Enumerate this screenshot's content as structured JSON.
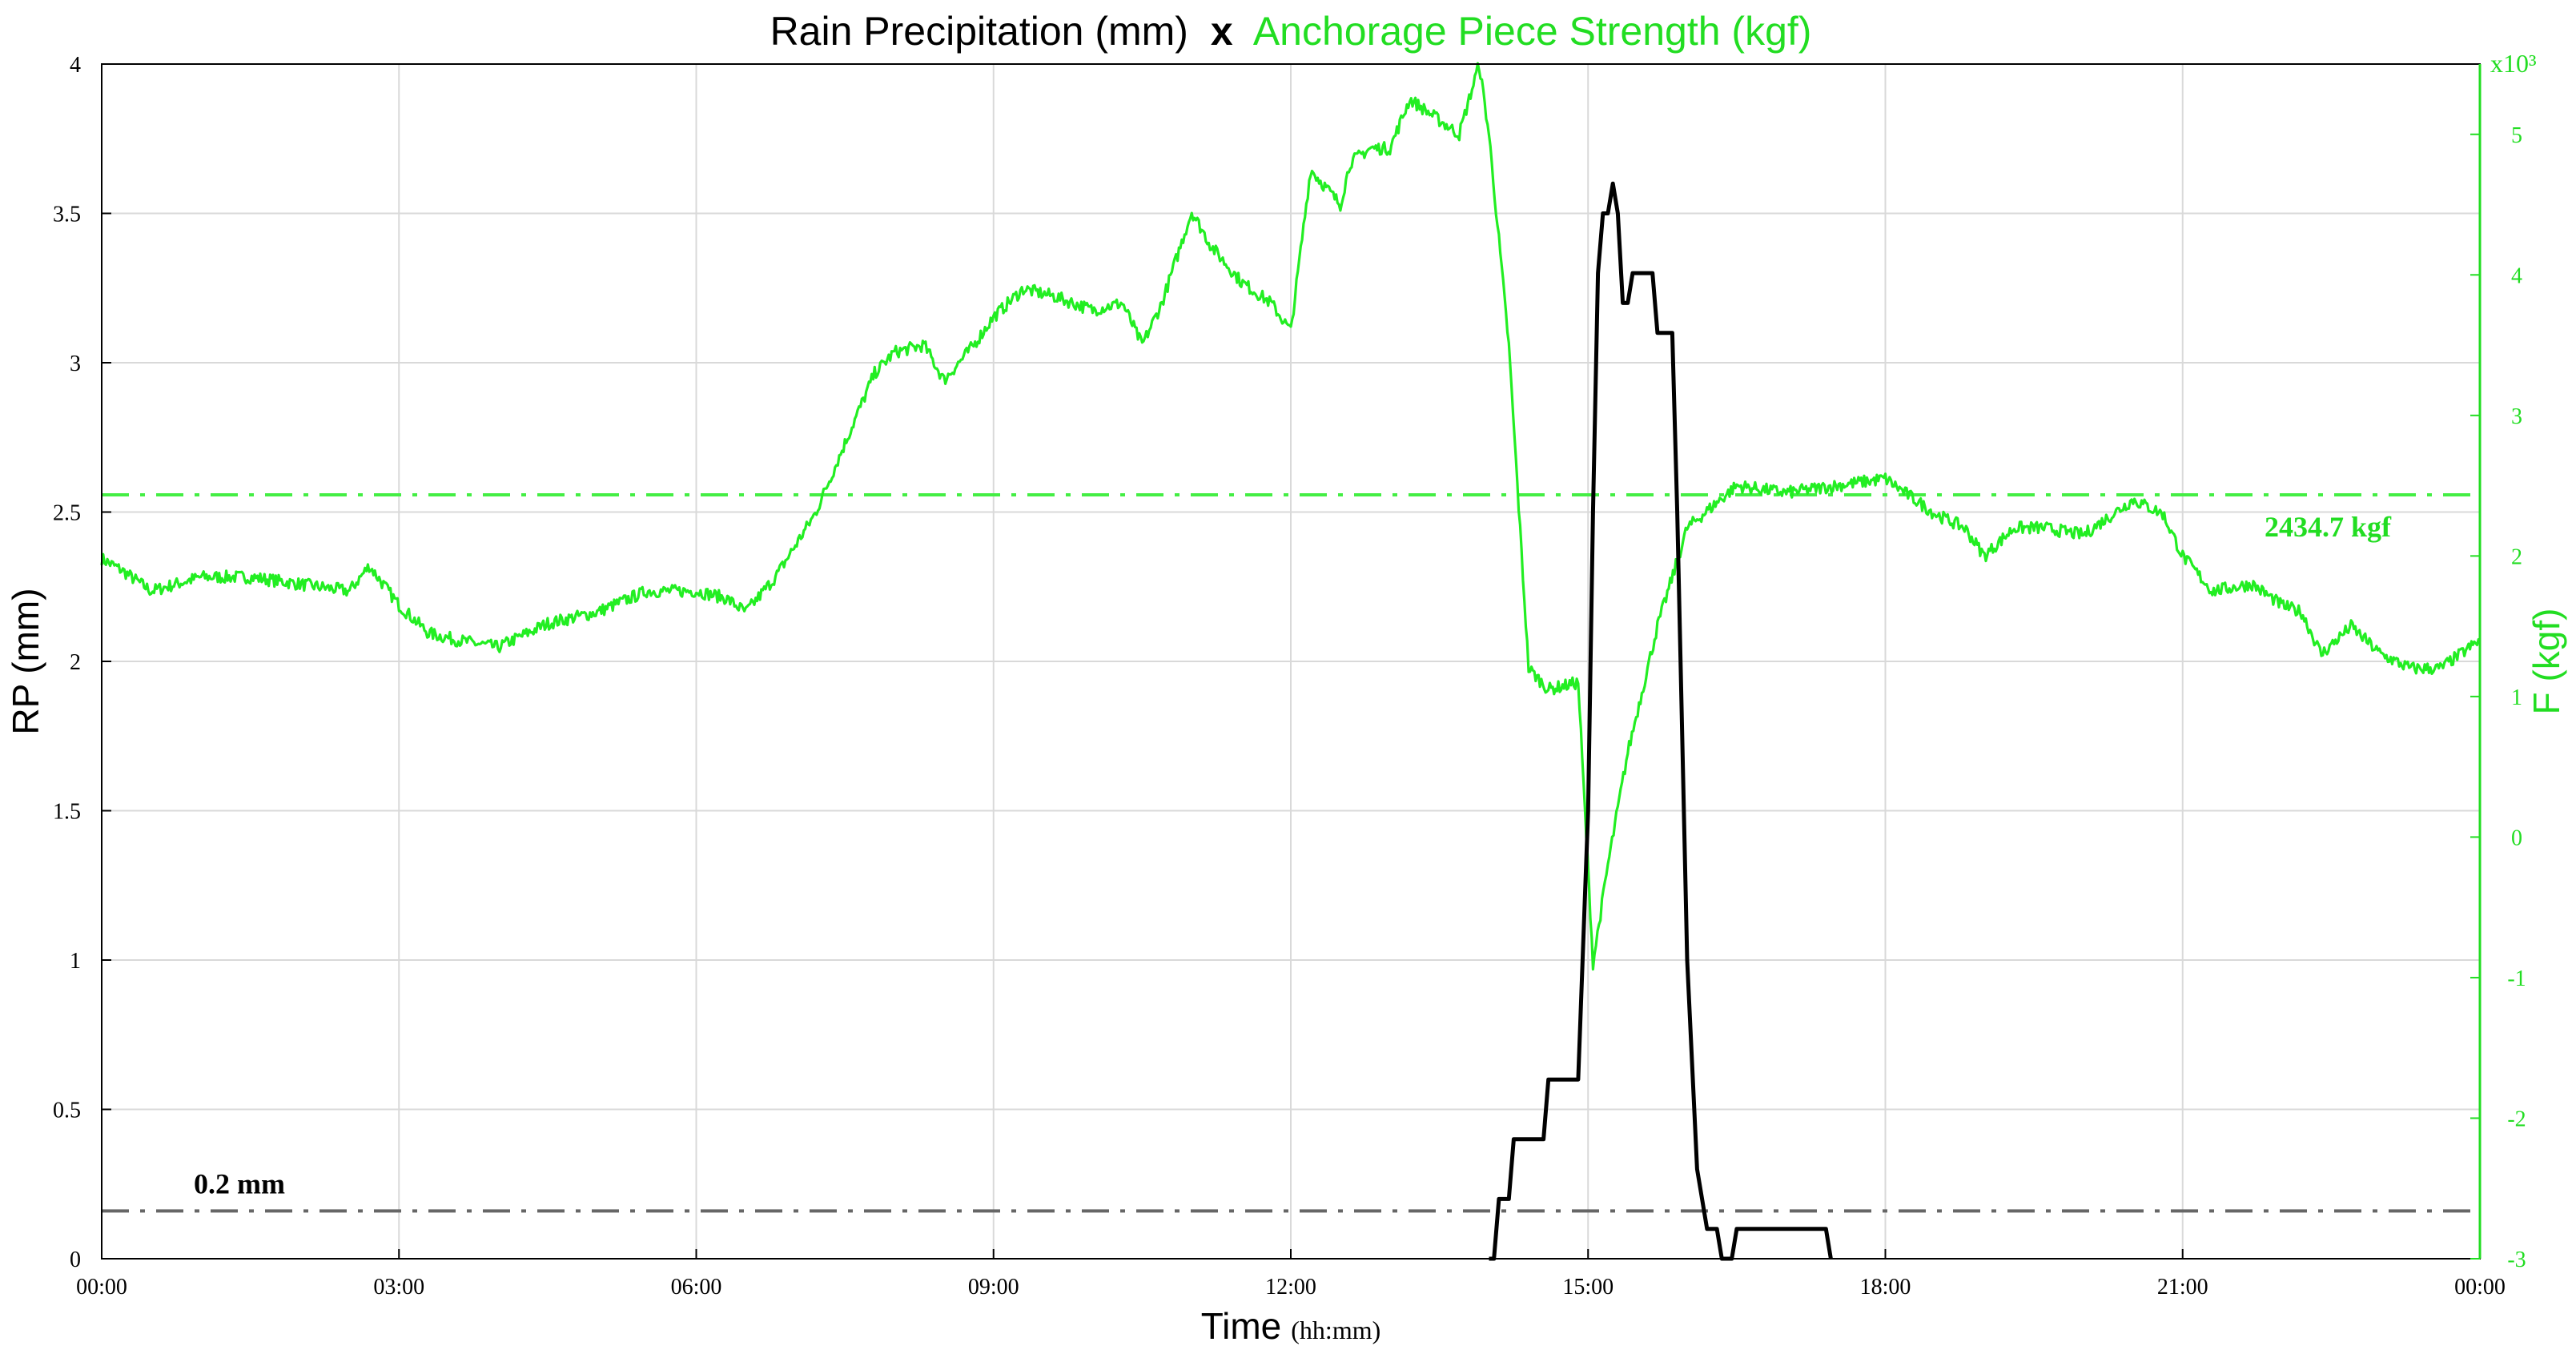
{
  "chart_data": {
    "type": "line",
    "title": {
      "part1": "Rain Precipitation (mm)",
      "separator": "x",
      "part2": "Anchorage Piece Strength (kgf)"
    },
    "xlabel": {
      "main": "Time",
      "unit": "(hh:mm)"
    },
    "ylabel_left": "RP (mm)",
    "ylabel_right": "F (kgf)",
    "right_axis_multiplier": "x10³",
    "x_ticks": [
      "00:00",
      "03:00",
      "06:00",
      "09:00",
      "12:00",
      "15:00",
      "18:00",
      "21:00",
      "00:00"
    ],
    "xlim_hours": [
      0,
      24
    ],
    "ylim_left": [
      0,
      4
    ],
    "y_ticks_left": [
      "0",
      "0.5",
      "1",
      "1.5",
      "2",
      "2.5",
      "3",
      "3.5",
      "4"
    ],
    "ylim_right": [
      -3,
      5.5
    ],
    "y_ticks_right": [
      "-3",
      "-2",
      "-1",
      "0",
      "1",
      "2",
      "3",
      "4",
      "5"
    ],
    "grid": true,
    "colors": {
      "rain": "#000000",
      "force": "#22ee22",
      "rain_ref": "#666666",
      "force_ref": "#44ee44"
    },
    "reference_lines": [
      {
        "axis": "left",
        "value": 0.16,
        "label": "0.2 mm"
      },
      {
        "axis": "right",
        "value": 2.4347,
        "label": "2434.7 kgf"
      }
    ],
    "series": [
      {
        "name": "Rain Precipitation (mm)",
        "axis": "left",
        "step": true,
        "points": [
          [
            14.0,
            0
          ],
          [
            14.05,
            0
          ],
          [
            14.1,
            0.2
          ],
          [
            14.2,
            0.2
          ],
          [
            14.25,
            0.4
          ],
          [
            14.55,
            0.4
          ],
          [
            14.6,
            0.6
          ],
          [
            14.9,
            0.6
          ],
          [
            15.0,
            1.5
          ],
          [
            15.05,
            2.5
          ],
          [
            15.1,
            3.3
          ],
          [
            15.15,
            3.5
          ],
          [
            15.2,
            3.5
          ],
          [
            15.25,
            3.6
          ],
          [
            15.3,
            3.5
          ],
          [
            15.35,
            3.2
          ],
          [
            15.4,
            3.2
          ],
          [
            15.45,
            3.3
          ],
          [
            15.65,
            3.3
          ],
          [
            15.7,
            3.1
          ],
          [
            15.85,
            3.1
          ],
          [
            15.9,
            2.5
          ],
          [
            16.0,
            1.0
          ],
          [
            16.1,
            0.3
          ],
          [
            16.15,
            0.2
          ],
          [
            16.2,
            0.1
          ],
          [
            16.3,
            0.1
          ],
          [
            16.35,
            0
          ],
          [
            16.45,
            0
          ],
          [
            16.5,
            0.1
          ],
          [
            17.4,
            0.1
          ],
          [
            17.45,
            0
          ]
        ]
      },
      {
        "name": "Anchorage Piece Strength (kgf)",
        "axis": "right",
        "scale": 1000,
        "points": [
          [
            0,
            1.98
          ],
          [
            0.2,
            1.9
          ],
          [
            0.5,
            1.75
          ],
          [
            1.0,
            1.85
          ],
          [
            1.5,
            1.85
          ],
          [
            2.0,
            1.8
          ],
          [
            2.5,
            1.75
          ],
          [
            2.7,
            1.93
          ],
          [
            3.0,
            1.65
          ],
          [
            3.3,
            1.45
          ],
          [
            3.6,
            1.4
          ],
          [
            4.0,
            1.35
          ],
          [
            4.5,
            1.52
          ],
          [
            5.0,
            1.6
          ],
          [
            5.5,
            1.75
          ],
          [
            6.0,
            1.75
          ],
          [
            6.3,
            1.7
          ],
          [
            6.5,
            1.6
          ],
          [
            6.8,
            1.85
          ],
          [
            7.2,
            2.3
          ],
          [
            7.5,
            2.8
          ],
          [
            7.8,
            3.3
          ],
          [
            8.0,
            3.45
          ],
          [
            8.3,
            3.5
          ],
          [
            8.5,
            3.25
          ],
          [
            8.8,
            3.5
          ],
          [
            9.0,
            3.7
          ],
          [
            9.3,
            3.9
          ],
          [
            9.6,
            3.85
          ],
          [
            10.0,
            3.75
          ],
          [
            10.3,
            3.8
          ],
          [
            10.5,
            3.5
          ],
          [
            10.7,
            3.8
          ],
          [
            11.0,
            4.45
          ],
          [
            11.2,
            4.2
          ],
          [
            11.5,
            3.95
          ],
          [
            11.8,
            3.8
          ],
          [
            12.0,
            3.6
          ],
          [
            12.2,
            4.75
          ],
          [
            12.5,
            4.5
          ],
          [
            12.6,
            4.8
          ],
          [
            12.8,
            4.9
          ],
          [
            13.0,
            4.9
          ],
          [
            13.2,
            5.25
          ],
          [
            13.5,
            5.1
          ],
          [
            13.7,
            5.0
          ],
          [
            13.9,
            5.5
          ],
          [
            14.0,
            5.0
          ],
          [
            14.2,
            3.5
          ],
          [
            14.4,
            1.2
          ],
          [
            14.6,
            1.05
          ],
          [
            14.9,
            1.1
          ],
          [
            15.05,
            -0.9
          ],
          [
            15.2,
            -0.2
          ],
          [
            15.4,
            0.6
          ],
          [
            15.7,
            1.5
          ],
          [
            16.0,
            2.2
          ],
          [
            16.5,
            2.5
          ],
          [
            17.0,
            2.45
          ],
          [
            17.5,
            2.5
          ],
          [
            18.0,
            2.55
          ],
          [
            18.5,
            2.3
          ],
          [
            18.8,
            2.2
          ],
          [
            19.0,
            2.0
          ],
          [
            19.3,
            2.2
          ],
          [
            19.6,
            2.2
          ],
          [
            20.0,
            2.15
          ],
          [
            20.5,
            2.4
          ],
          [
            20.8,
            2.3
          ],
          [
            21.0,
            2.0
          ],
          [
            21.3,
            1.75
          ],
          [
            21.7,
            1.8
          ],
          [
            22.0,
            1.65
          ],
          [
            22.2,
            1.6
          ],
          [
            22.4,
            1.3
          ],
          [
            22.7,
            1.5
          ],
          [
            23.0,
            1.3
          ],
          [
            23.3,
            1.2
          ],
          [
            23.6,
            1.2
          ],
          [
            24.0,
            1.4
          ]
        ]
      }
    ]
  }
}
